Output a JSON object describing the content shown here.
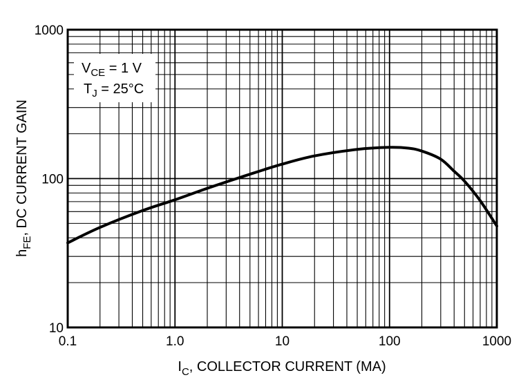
{
  "chart_data": {
    "type": "line",
    "xscale": "log",
    "yscale": "log",
    "xlim": [
      0.1,
      1000
    ],
    "ylim": [
      10,
      1000
    ],
    "grid": true,
    "xlabel": {
      "main": "I",
      "sub": "C",
      "rest": ", COLLECTOR CURRENT (MA)"
    },
    "ylabel": {
      "main": "h",
      "sub": "FE",
      "rest": ", DC CURRENT GAIN"
    },
    "x_tick_labels": [
      "0.1",
      "1.0",
      "10",
      "100",
      "1000"
    ],
    "x_ticks": [
      0.1,
      1,
      10,
      100,
      1000
    ],
    "y_tick_labels": [
      "10",
      "100",
      "1000"
    ],
    "y_ticks": [
      10,
      100,
      1000
    ],
    "annotations": [
      {
        "main": "V",
        "sub": "CE",
        "rest": " = 1 V"
      },
      {
        "main": "T",
        "sub": "J",
        "rest": " = 25°C"
      }
    ],
    "series": [
      {
        "x": [
          0.1,
          0.2,
          0.5,
          1,
          2,
          5,
          10,
          20,
          50,
          100,
          150,
          200,
          300,
          400,
          500,
          700,
          1000
        ],
        "y": [
          37,
          47,
          61,
          72,
          86,
          107,
          125,
          142,
          157,
          162,
          160,
          153,
          135,
          112,
          96,
          71,
          48
        ]
      }
    ],
    "colors": {
      "line": "#000000",
      "grid": "#000000",
      "background": "#ffffff"
    }
  }
}
